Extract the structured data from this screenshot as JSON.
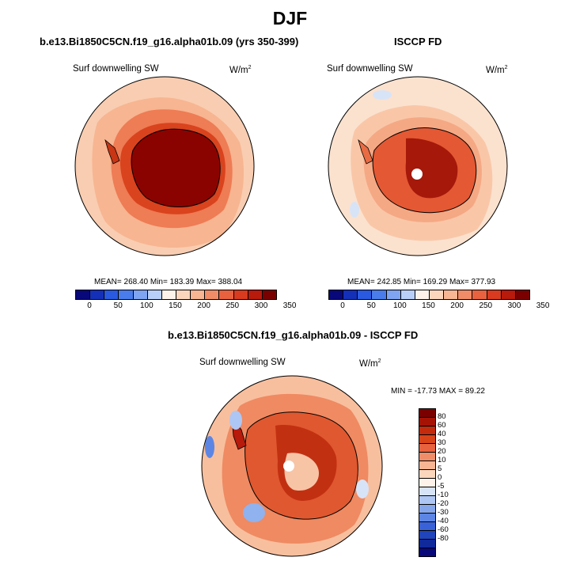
{
  "title": "DJF",
  "panels": [
    {
      "id": "model",
      "title": "b.e13.Bi1850C5CN.f19_g16.alpha01b.09 (yrs 350-399)",
      "variable": "Surf downwelling SW",
      "units_base": "W/m",
      "units_exp": "2",
      "stats": "MEAN= 268.40  Min= 183.39  Max= 388.04"
    },
    {
      "id": "obs",
      "title": "ISCCP FD",
      "variable": "Surf downwelling SW",
      "units_base": "W/m",
      "units_exp": "2",
      "stats": "MEAN= 242.85  Min= 169.29  Max= 377.93"
    },
    {
      "id": "diff",
      "title": "b.e13.Bi1850C5CN.f19_g16.alpha01b.09 - ISCCP FD",
      "variable": "Surf downwelling SW",
      "units_base": "W/m",
      "units_exp": "2",
      "stats": "MIN = -17.73 MAX =  89.22"
    }
  ],
  "colorbar_abs": {
    "colors": [
      "#08087a",
      "#1530b8",
      "#2a5ae0",
      "#4a7cec",
      "#7ea4f2",
      "#b8d0f8",
      "#fdf3ea",
      "#fbd6bd",
      "#f7b594",
      "#f18c68",
      "#e8623f",
      "#d83b1f",
      "#b81a0b",
      "#7a0000"
    ],
    "tick_labels": [
      "0",
      "50",
      "100",
      "150",
      "200",
      "250",
      "300",
      "350"
    ]
  },
  "colorbar_diff": {
    "colors": [
      "#7a0000",
      "#a51305",
      "#c42a0c",
      "#d94318",
      "#e8623f",
      "#f18c68",
      "#f7b594",
      "#fbd6bd",
      "#fdf3ea",
      "#d7e4f8",
      "#aec6f3",
      "#86a6ec",
      "#5d86e4",
      "#3a62d8",
      "#2044bb",
      "#102a9a",
      "#08087a"
    ],
    "labels": [
      "80",
      "60",
      "40",
      "30",
      "20",
      "10",
      "5",
      "0",
      "-5",
      "-10",
      "-20",
      "-30",
      "-40",
      "-60",
      "-80"
    ]
  },
  "map_fill": {
    "model": {
      "background": "#f9cdb1",
      "mid": "#ee7c55",
      "inner": "#d9431d",
      "core": "#8a0300"
    },
    "obs": {
      "background": "#fbe2cf",
      "mid": "#f5a884",
      "inner": "#e45833",
      "core": "#a5180a",
      "pole": "#ffffff"
    },
    "diff": {
      "background": "#f8bf9e",
      "mid": "#ef8a62",
      "inner": "#e0582f",
      "core": "#c23012",
      "blue": "#90b2ee",
      "pole": "#ffffff"
    }
  }
}
